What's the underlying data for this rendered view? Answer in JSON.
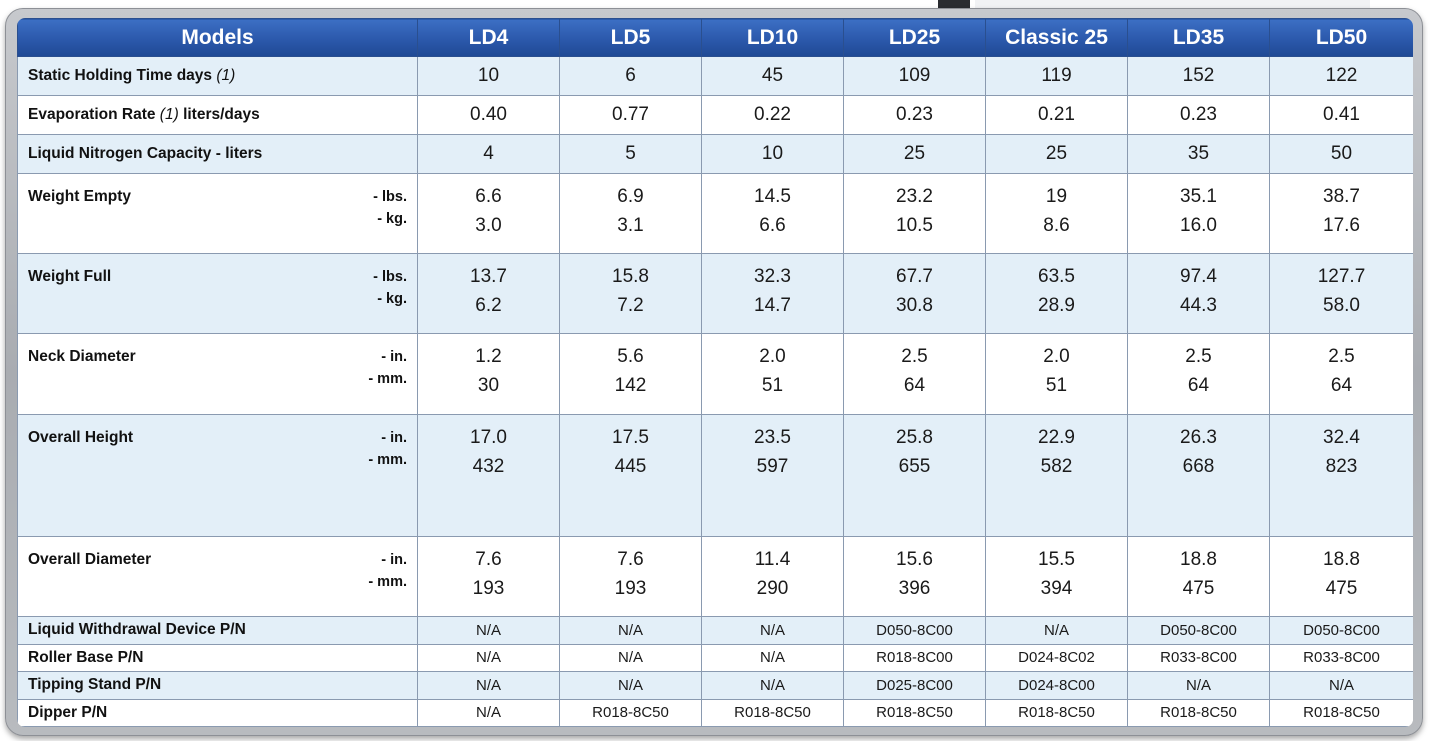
{
  "header": {
    "models_label": "Models",
    "models": [
      "LD4",
      "LD5",
      "LD10",
      "LD25",
      "Classic 25",
      "LD35",
      "LD50"
    ]
  },
  "rows": {
    "static_holding": {
      "label": "Static Holding Time days",
      "note": "(1)",
      "values": [
        "10",
        "6",
        "45",
        "109",
        "119",
        "152",
        "122"
      ]
    },
    "evaporation": {
      "label": "Evaporation Rate",
      "note": "(1)",
      "label_suffix": "liters/days",
      "values": [
        "0.40",
        "0.77",
        "0.22",
        "0.23",
        "0.21",
        "0.23",
        "0.41"
      ]
    },
    "ln2_capacity": {
      "label": "Liquid Nitrogen Capacity - liters",
      "values": [
        "4",
        "5",
        "10",
        "25",
        "25",
        "35",
        "50"
      ]
    },
    "weight_empty": {
      "label": "Weight Empty",
      "unit1": "- lbs.",
      "unit2": "- kg.",
      "values1": [
        "6.6",
        "6.9",
        "14.5",
        "23.2",
        "19",
        "35.1",
        "38.7"
      ],
      "values2": [
        "3.0",
        "3.1",
        "6.6",
        "10.5",
        "8.6",
        "16.0",
        "17.6"
      ]
    },
    "weight_full": {
      "label": "Weight Full",
      "unit1": "- lbs.",
      "unit2": "- kg.",
      "values1": [
        "13.7",
        "15.8",
        "32.3",
        "67.7",
        "63.5",
        "97.4",
        "127.7"
      ],
      "values2": [
        "6.2",
        "7.2",
        "14.7",
        "30.8",
        "28.9",
        "44.3",
        "58.0"
      ]
    },
    "neck_diameter": {
      "label": "Neck Diameter",
      "unit1": "- in.",
      "unit2": "- mm.",
      "values1": [
        "1.2",
        "5.6",
        "2.0",
        "2.5",
        "2.0",
        "2.5",
        "2.5"
      ],
      "values2": [
        "30",
        "142",
        "51",
        "64",
        "51",
        "64",
        "64"
      ]
    },
    "overall_height": {
      "label": "Overall Height",
      "unit1": "- in.",
      "unit2": "- mm.",
      "values1": [
        "17.0",
        "17.5",
        "23.5",
        "25.8",
        "22.9",
        "26.3",
        "32.4"
      ],
      "values2": [
        "432",
        "445",
        "597",
        "655",
        "582",
        "668",
        "823"
      ]
    },
    "overall_diameter": {
      "label": "Overall Diameter",
      "unit1": "- in.",
      "unit2": "- mm.",
      "values1": [
        "7.6",
        "7.6",
        "11.4",
        "15.6",
        "15.5",
        "18.8",
        "18.8"
      ],
      "values2": [
        "193",
        "193",
        "290",
        "396",
        "394",
        "475",
        "475"
      ]
    },
    "withdrawal_device": {
      "label": "Liquid Withdrawal Device  P/N",
      "values": [
        "N/A",
        "N/A",
        "N/A",
        "D050-8C00",
        "N/A",
        "D050-8C00",
        "D050-8C00"
      ]
    },
    "roller_base": {
      "label": "Roller Base  P/N",
      "values": [
        "N/A",
        "N/A",
        "N/A",
        "R018-8C00",
        "D024-8C02",
        "R033-8C00",
        "R033-8C00"
      ]
    },
    "tipping_stand": {
      "label": "Tipping Stand  P/N",
      "values": [
        "N/A",
        "N/A",
        "N/A",
        "D025-8C00",
        "D024-8C00",
        "N/A",
        "N/A"
      ]
    },
    "dipper": {
      "label": "Dipper  P/N",
      "values": [
        "N/A",
        "R018-8C50",
        "R018-8C50",
        "R018-8C50",
        "R018-8C50",
        "R018-8C50",
        "R018-8C50"
      ]
    }
  }
}
